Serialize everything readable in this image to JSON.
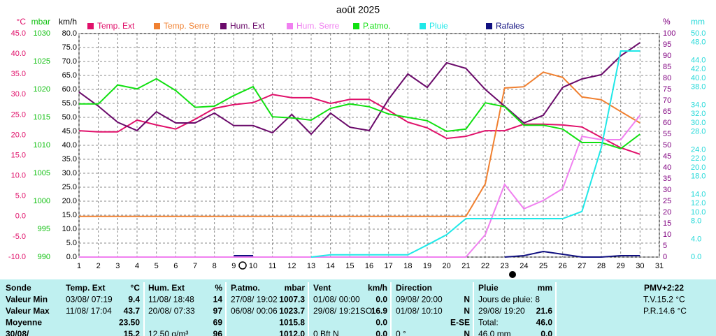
{
  "chart_data": {
    "type": "line",
    "title": "août 2025",
    "xlim": [
      1,
      31
    ],
    "xticks": [
      1,
      2,
      3,
      4,
      5,
      6,
      7,
      8,
      9,
      10,
      11,
      12,
      13,
      14,
      15,
      16,
      17,
      18,
      19,
      20,
      21,
      22,
      23,
      24,
      25,
      26,
      27,
      28,
      29,
      30,
      31
    ],
    "x": [
      1,
      2,
      3,
      4,
      5,
      6,
      7,
      8,
      9,
      10,
      11,
      12,
      13,
      14,
      15,
      16,
      17,
      18,
      19,
      20,
      21,
      22,
      23,
      24,
      25,
      26,
      27,
      28,
      29,
      30
    ],
    "grid": true,
    "axes": [
      {
        "label": "°C",
        "color": "#e0106a",
        "lim": [
          -10,
          45
        ],
        "ticks": [
          {
            "value": -10,
            "label": "-10.0"
          },
          {
            "value": -5,
            "label": "-5.0"
          },
          {
            "value": 0,
            "label": "0.0"
          },
          {
            "value": 5,
            "label": "5.0"
          },
          {
            "value": 10,
            "label": "10.0"
          },
          {
            "value": 15,
            "label": "15.0"
          },
          {
            "value": 20,
            "label": "20.0"
          },
          {
            "value": 25,
            "label": "25.0"
          },
          {
            "value": 30,
            "label": "30.0"
          },
          {
            "value": 35,
            "label": "35.0"
          },
          {
            "value": 40,
            "label": "40.0"
          },
          {
            "value": 45,
            "label": "45.0"
          }
        ]
      },
      {
        "label": "mbar",
        "color": "#10c010",
        "lim": [
          990,
          1030
        ],
        "ticks": [
          990,
          995,
          1000,
          1005,
          1010,
          1015,
          1020,
          1025,
          1030
        ]
      },
      {
        "label": "km/h",
        "color": "#000000",
        "lim": [
          0,
          80
        ],
        "ticks": [
          {
            "value": 0,
            "label": "0.0"
          },
          {
            "value": 5,
            "label": "5.0"
          },
          {
            "value": 10,
            "label": "10.0"
          },
          {
            "value": 15,
            "label": "15.0"
          },
          {
            "value": 20,
            "label": "20.0"
          },
          {
            "value": 25,
            "label": "25.0"
          },
          {
            "value": 30,
            "label": "30.0"
          },
          {
            "value": 35,
            "label": "35.0"
          },
          {
            "value": 40,
            "label": "40.0"
          },
          {
            "value": 45,
            "label": "45.0"
          },
          {
            "value": 50,
            "label": "50.0"
          },
          {
            "value": 55,
            "label": "55.0"
          },
          {
            "value": 60,
            "label": "60.0"
          },
          {
            "value": 65,
            "label": "65.0"
          },
          {
            "value": 70,
            "label": "70.0"
          },
          {
            "value": 75,
            "label": "75.0"
          },
          {
            "value": 80,
            "label": "80.0"
          }
        ]
      },
      {
        "label": "%",
        "color": "#800080",
        "lim": [
          0,
          100
        ],
        "ticks": [
          0,
          5,
          10,
          15,
          20,
          25,
          30,
          35,
          40,
          45,
          50,
          55,
          60,
          65,
          70,
          75,
          80,
          85,
          90,
          95,
          100
        ]
      },
      {
        "label": "mm",
        "color": "#20d8d8",
        "lim": [
          0,
          50
        ],
        "ticks": [
          {
            "value": 0,
            "label": "0.0"
          },
          {
            "value": 4,
            "label": "4.0"
          },
          {
            "value": 8,
            "label": "8.0"
          },
          {
            "value": 10,
            "label": "10.0"
          },
          {
            "value": 12,
            "label": "12.0"
          },
          {
            "value": 14,
            "label": "14.0"
          },
          {
            "value": 18,
            "label": "18.0"
          },
          {
            "value": 20,
            "label": "20.0"
          },
          {
            "value": 22,
            "label": "22.0"
          },
          {
            "value": 24,
            "label": "24.0"
          },
          {
            "value": 28,
            "label": "28.0"
          },
          {
            "value": 30,
            "label": "30.0"
          },
          {
            "value": 32,
            "label": "32.0"
          },
          {
            "value": 34,
            "label": "34.0"
          },
          {
            "value": 38,
            "label": "38.0"
          },
          {
            "value": 40,
            "label": "40.0"
          },
          {
            "value": 42,
            "label": "42.0"
          },
          {
            "value": 44,
            "label": "44.0"
          },
          {
            "value": 48,
            "label": "48.0"
          },
          {
            "value": 50,
            "label": "50.0"
          }
        ]
      }
    ],
    "series": [
      {
        "name": "Temp. Ext",
        "color": "#e0106a",
        "axis": "°C",
        "values": [
          21.1,
          20.8,
          20.8,
          23.7,
          22.5,
          21.5,
          23.9,
          26.6,
          27.5,
          28.0,
          30.0,
          29.2,
          29.2,
          27.8,
          28.8,
          28.8,
          26.1,
          23.2,
          21.8,
          19.2,
          19.7,
          21.1,
          21.1,
          22.7,
          22.7,
          22.5,
          22.0,
          19.4,
          16.9,
          15.3
        ]
      },
      {
        "name": "Temp. Serre",
        "color": "#f08030",
        "axis": "°C",
        "values": [
          0,
          0,
          0,
          0,
          0,
          0,
          0,
          0,
          0,
          0,
          0,
          0,
          0,
          0,
          0,
          0,
          0,
          0,
          0,
          0,
          0,
          8.0,
          31.6,
          31.9,
          35.5,
          34.2,
          29.4,
          28.7,
          25.8,
          23.0
        ]
      },
      {
        "name": "Hum. Ext",
        "color": "#6a0a6a",
        "axis": "%",
        "values": [
          73.8,
          67.5,
          60.3,
          56.6,
          65,
          60,
          60,
          64.4,
          58.8,
          58.8,
          55.6,
          63.8,
          55,
          64.4,
          58.1,
          56.6,
          70.6,
          81.9,
          75.9,
          86.9,
          84.4,
          75,
          67.5,
          60,
          63.4,
          75.9,
          79.7,
          81.6,
          90,
          95.9
        ]
      },
      {
        "name": "Hum. Serre",
        "color": "#f080f0",
        "axis": "%",
        "values": [
          0,
          0,
          0,
          0,
          0,
          0,
          0,
          0,
          0,
          0,
          0,
          0,
          0,
          0,
          0,
          0,
          0,
          0,
          0,
          0,
          0,
          10,
          32.5,
          21.6,
          25.3,
          30.6,
          54,
          52.5,
          52.5,
          63.4
        ]
      },
      {
        "name": "P.atmo.",
        "color": "#10e010",
        "axis": "mbar",
        "values": [
          1017.4,
          1017.4,
          1020.8,
          1020.1,
          1021.9,
          1019.8,
          1016.8,
          1017,
          1018.9,
          1020.5,
          1015.1,
          1014.9,
          1014.5,
          1016.6,
          1017.4,
          1016.9,
          1015.6,
          1015,
          1014.4,
          1012.5,
          1012.9,
          1017.6,
          1016.9,
          1013.6,
          1013.6,
          1012.9,
          1010.5,
          1010.5,
          1009.4,
          1012
        ]
      },
      {
        "name": "Pluie",
        "color": "#20e8e8",
        "axis": "mm",
        "values": [
          null,
          null,
          null,
          null,
          null,
          null,
          null,
          null,
          null,
          null,
          null,
          null,
          0,
          0.5,
          0.5,
          0.5,
          0.5,
          0.5,
          2.7,
          5,
          8.6,
          8.6,
          8.6,
          8.6,
          8.6,
          8.6,
          10.2,
          24.5,
          46.1,
          46.1
        ]
      },
      {
        "name": "Rafales",
        "color": "#101080",
        "axis": "km/h",
        "values": [
          null,
          null,
          null,
          null,
          null,
          null,
          null,
          null,
          0.5,
          0.5,
          null,
          null,
          null,
          null,
          null,
          null,
          null,
          null,
          null,
          null,
          null,
          null,
          0,
          0.5,
          2,
          1,
          0,
          0,
          0.5,
          0.5
        ]
      }
    ]
  },
  "table": {
    "rows": [
      [
        [
          "Sonde"
        ],
        [
          "Temp. Ext",
          "°C"
        ],
        [
          "Hum. Ext",
          "%"
        ],
        [
          "P.atmo.",
          "mbar"
        ],
        [
          "Vent",
          "km/h"
        ],
        [
          "Direction"
        ],
        [
          "Pluie",
          "mm"
        ],
        [
          "PMV+2:22"
        ]
      ],
      [
        [
          "Valeur Min"
        ],
        [
          "03/08/  07:19",
          "9.4"
        ],
        [
          "11/08/  18:48",
          "14"
        ],
        [
          "27/08/  19:02",
          "1007.3"
        ],
        [
          "01/08/  00:00",
          "0.0"
        ],
        [
          "09/08/  20:00",
          "N"
        ],
        [
          "Jours de pluie: 8"
        ],
        [
          "T.V.15.2 °C"
        ]
      ],
      [
        [
          "Valeur Max"
        ],
        [
          "11/08/  17:04",
          "43.7"
        ],
        [
          "20/08/  07:33",
          "97"
        ],
        [
          "06/08/  00:06",
          "1023.7"
        ],
        [
          "29/08/  19:21SO",
          "16.9"
        ],
        [
          "01/08/  10:10",
          "N"
        ],
        [
          "29/08/  19:20",
          "21.6"
        ],
        [
          "P.R.14.6 °C"
        ]
      ],
      [
        [
          "Moyenne"
        ],
        [
          "",
          "23.50"
        ],
        [
          "",
          "69"
        ],
        [
          "",
          "1015.8"
        ],
        [
          "",
          "0.0"
        ],
        [
          "",
          "E-SE"
        ],
        [
          "Total:",
          "46.0"
        ],
        [
          ""
        ]
      ],
      [
        [
          "30/08/"
        ],
        [
          "",
          "15.2"
        ],
        [
          "12.50 g/m³",
          "96"
        ],
        [
          "",
          "1012.0"
        ],
        [
          "0 Bft N",
          "0.0"
        ],
        [
          "0 °",
          "N"
        ],
        [
          "46.0 mm",
          "0.0"
        ],
        [
          ""
        ]
      ]
    ]
  }
}
